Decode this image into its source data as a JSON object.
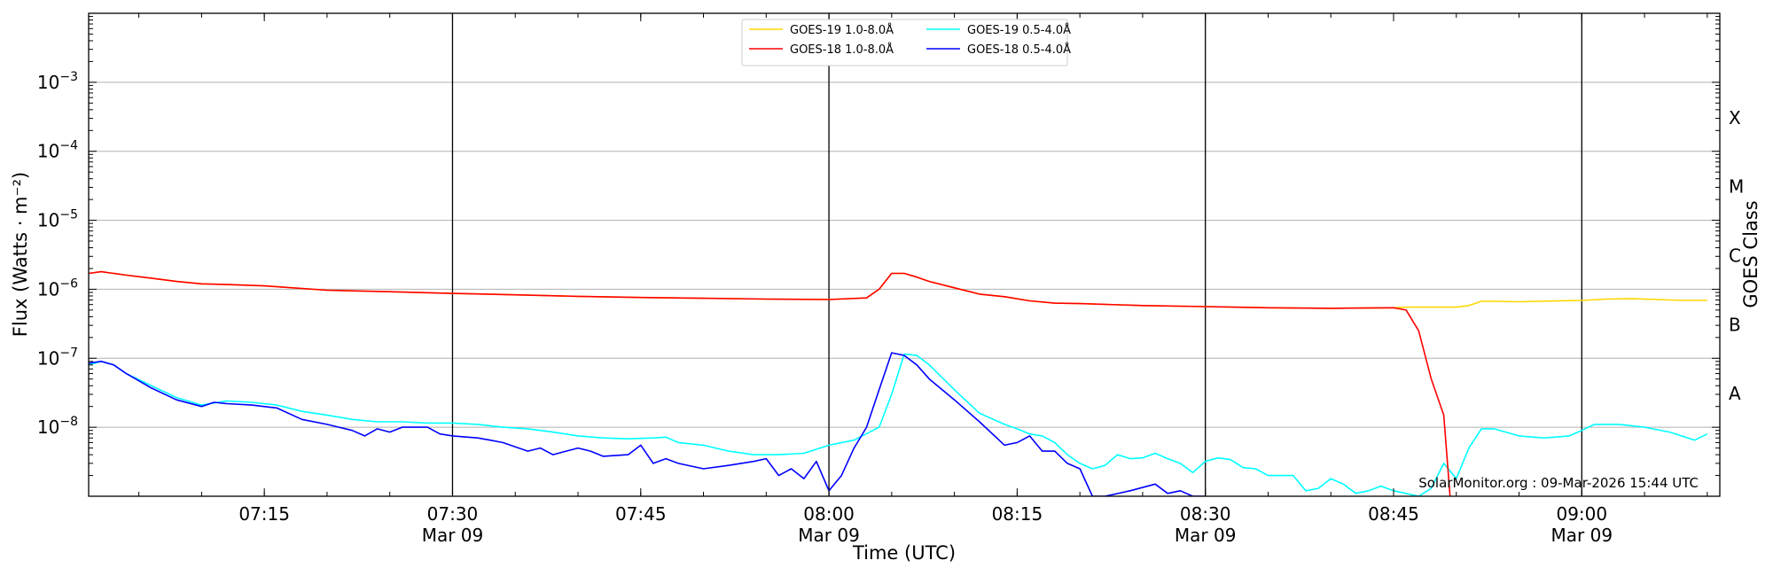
{
  "chart_data": {
    "type": "line",
    "xlabel": "Time (UTC)",
    "ylabel": "Flux (Watts · m⁻²)",
    "right_ylabel": "GOES Class",
    "yscale": "log",
    "ylim": [
      1e-09,
      0.01
    ],
    "xlim": [
      "2026-03-09 07:01",
      "2026-03-09 09:11"
    ],
    "grid": "horizontal at decades",
    "legend_position": "top-center",
    "credit": "SolarMonitor.org : 09-Mar-2026 15:44 UTC",
    "x_ticks": [
      {
        "time": "07:15",
        "date": ""
      },
      {
        "time": "07:30",
        "date": "Mar 09"
      },
      {
        "time": "07:45",
        "date": ""
      },
      {
        "time": "08:00",
        "date": "Mar 09"
      },
      {
        "time": "08:15",
        "date": ""
      },
      {
        "time": "08:30",
        "date": "Mar 09"
      },
      {
        "time": "08:45",
        "date": ""
      },
      {
        "time": "09:00",
        "date": "Mar 09"
      }
    ],
    "y_ticks": [
      {
        "exp": "-8",
        "value": 1e-08
      },
      {
        "exp": "-7",
        "value": 1e-07
      },
      {
        "exp": "-6",
        "value": 1e-06
      },
      {
        "exp": "-5",
        "value": 1e-05
      },
      {
        "exp": "-4",
        "value": 0.0001
      },
      {
        "exp": "-3",
        "value": 0.001
      }
    ],
    "vertical_lines": [
      "07:30",
      "08:00",
      "08:30",
      "09:00"
    ],
    "goes_classes": [
      {
        "label": "A",
        "value": 3.16e-08
      },
      {
        "label": "B",
        "value": 3.16e-07
      },
      {
        "label": "C",
        "value": 3.16e-06
      },
      {
        "label": "M",
        "value": 3.16e-05
      },
      {
        "label": "X",
        "value": 0.000316
      }
    ],
    "series": [
      {
        "name": "GOES-19 1.0-8.0Å",
        "color": "#FFD700",
        "x": [
          "07:01",
          "07:02",
          "07:04",
          "07:06",
          "07:08",
          "07:10",
          "07:12",
          "07:15",
          "07:20",
          "07:25",
          "07:30",
          "07:35",
          "07:40",
          "07:45",
          "07:50",
          "07:55",
          "08:00",
          "08:03",
          "08:04",
          "08:05",
          "08:06",
          "08:07",
          "08:08",
          "08:10",
          "08:12",
          "08:14",
          "08:16",
          "08:18",
          "08:20",
          "08:25",
          "08:30",
          "08:35",
          "08:40",
          "08:45",
          "08:46",
          "08:48",
          "08:50",
          "08:51",
          "08:52",
          "08:53",
          "08:55",
          "09:00",
          "09:02",
          "09:04",
          "09:06",
          "09:08",
          "09:10"
        ],
        "y": [
          1.7e-06,
          1.8e-06,
          1.6e-06,
          1.45e-06,
          1.3e-06,
          1.2e-06,
          1.17e-06,
          1.12e-06,
          9.7e-07,
          9.2e-07,
          8.7e-07,
          8.3e-07,
          7.9e-07,
          7.6e-07,
          7.4e-07,
          7.2e-07,
          7.1e-07,
          7.5e-07,
          1e-06,
          1.7e-06,
          1.7e-06,
          1.5e-06,
          1.3e-06,
          1.05e-06,
          8.5e-07,
          7.8e-07,
          6.8e-07,
          6.3e-07,
          6.2e-07,
          5.8e-07,
          5.6e-07,
          5.4e-07,
          5.3e-07,
          5.4e-07,
          5.5e-07,
          5.5e-07,
          5.5e-07,
          5.8e-07,
          6.7e-07,
          6.7e-07,
          6.6e-07,
          6.9e-07,
          7.2e-07,
          7.3e-07,
          7.1e-07,
          6.9e-07,
          6.9e-07
        ]
      },
      {
        "name": "GOES-18 1.0-8.0Å",
        "color": "#FF0000",
        "x": [
          "07:01",
          "07:02",
          "07:04",
          "07:06",
          "07:08",
          "07:10",
          "07:12",
          "07:15",
          "07:20",
          "07:25",
          "07:30",
          "07:35",
          "07:40",
          "07:45",
          "07:50",
          "07:55",
          "08:00",
          "08:03",
          "08:04",
          "08:05",
          "08:06",
          "08:07",
          "08:08",
          "08:10",
          "08:12",
          "08:14",
          "08:16",
          "08:18",
          "08:20",
          "08:25",
          "08:30",
          "08:35",
          "08:40",
          "08:45",
          "08:46",
          "08:47",
          "08:48",
          "08:49",
          "08:49.5"
        ],
        "y": [
          1.7e-06,
          1.8e-06,
          1.6e-06,
          1.45e-06,
          1.3e-06,
          1.2e-06,
          1.17e-06,
          1.12e-06,
          9.7e-07,
          9.2e-07,
          8.7e-07,
          8.3e-07,
          7.9e-07,
          7.6e-07,
          7.4e-07,
          7.2e-07,
          7.1e-07,
          7.5e-07,
          1e-06,
          1.7e-06,
          1.7e-06,
          1.5e-06,
          1.3e-06,
          1.05e-06,
          8.5e-07,
          7.8e-07,
          6.8e-07,
          6.3e-07,
          6.2e-07,
          5.8e-07,
          5.6e-07,
          5.4e-07,
          5.3e-07,
          5.4e-07,
          5e-07,
          2.5e-07,
          5e-08,
          1.5e-08,
          1e-09
        ]
      },
      {
        "name": "GOES-19 0.5-4.0Å",
        "color": "#00FFFF",
        "x": [
          "07:01",
          "07:02",
          "07:03",
          "07:04",
          "07:06",
          "07:08",
          "07:10",
          "07:12",
          "07:14",
          "07:16",
          "07:18",
          "07:20",
          "07:22",
          "07:24",
          "07:26",
          "07:28",
          "07:30",
          "07:32",
          "07:34",
          "07:36",
          "07:38",
          "07:40",
          "07:42",
          "07:44",
          "07:46",
          "07:47",
          "07:48",
          "07:50",
          "07:52",
          "07:54",
          "07:56",
          "07:58",
          "08:00",
          "08:02",
          "08:04",
          "08:05",
          "08:06",
          "08:07",
          "08:08",
          "08:10",
          "08:12",
          "08:14",
          "08:15",
          "08:16",
          "08:17",
          "08:18",
          "08:19",
          "08:20",
          "08:21",
          "08:22",
          "08:23",
          "08:24",
          "08:25",
          "08:26",
          "08:27",
          "08:28",
          "08:29",
          "08:30",
          "08:31",
          "08:32",
          "08:33",
          "08:34",
          "08:35",
          "08:36",
          "08:37",
          "08:38",
          "08:39",
          "08:40",
          "08:41",
          "08:42",
          "08:43",
          "08:44",
          "08:45",
          "08:46",
          "08:47",
          "08:48",
          "08:49",
          "08:50",
          "08:51",
          "08:52",
          "08:53",
          "08:55",
          "08:57",
          "08:59",
          "09:00",
          "09:01",
          "09:03",
          "09:05",
          "09:07",
          "09:09",
          "09:10"
        ],
        "y": [
          8e-08,
          9e-08,
          8e-08,
          6e-08,
          4e-08,
          2.7e-08,
          2.1e-08,
          2.4e-08,
          2.3e-08,
          2.1e-08,
          1.7e-08,
          1.5e-08,
          1.3e-08,
          1.2e-08,
          1.2e-08,
          1.15e-08,
          1.15e-08,
          1.1e-08,
          1e-08,
          9.5e-09,
          8.5e-09,
          7.5e-09,
          7e-09,
          6.8e-09,
          7e-09,
          7.2e-09,
          6e-09,
          5.5e-09,
          4.5e-09,
          4e-09,
          4e-09,
          4.2e-09,
          5.5e-09,
          6.5e-09,
          1e-08,
          3e-08,
          1.15e-07,
          1.1e-07,
          8e-08,
          3.5e-08,
          1.6e-08,
          1.1e-08,
          9.5e-09,
          8e-09,
          7.5e-09,
          6e-09,
          4e-09,
          3e-09,
          2.5e-09,
          2.8e-09,
          4e-09,
          3.5e-09,
          3.6e-09,
          4.2e-09,
          3.5e-09,
          3e-09,
          2.2e-09,
          3.2e-09,
          3.6e-09,
          3.4e-09,
          2.6e-09,
          2.5e-09,
          2e-09,
          2e-09,
          2e-09,
          1.2e-09,
          1.3e-09,
          1.8e-09,
          1.5e-09,
          1.1e-09,
          1.2e-09,
          1.4e-09,
          1.2e-09,
          1.1e-09,
          1e-09,
          1.3e-09,
          3e-09,
          1.8e-09,
          5e-09,
          9.5e-09,
          9.5e-09,
          7.5e-09,
          7e-09,
          7.5e-09,
          9e-09,
          1.1e-08,
          1.1e-08,
          1e-08,
          8.5e-09,
          6.5e-09,
          8e-09
        ]
      },
      {
        "name": "GOES-18 0.5-4.0Å",
        "color": "#0000FF",
        "x": [
          "07:01",
          "07:02",
          "07:03",
          "07:04",
          "07:06",
          "07:08",
          "07:10",
          "07:11",
          "07:12",
          "07:14",
          "07:16",
          "07:18",
          "07:20",
          "07:22",
          "07:23",
          "07:24",
          "07:25",
          "07:26",
          "07:28",
          "07:29",
          "07:30",
          "07:32",
          "07:33",
          "07:34",
          "07:36",
          "07:37",
          "07:38",
          "07:40",
          "07:41",
          "07:42",
          "07:44",
          "07:45",
          "07:46",
          "07:47",
          "07:48",
          "07:50",
          "07:52",
          "07:54",
          "07:55",
          "07:56",
          "07:57",
          "07:58",
          "07:59",
          "08:00",
          "08:01",
          "08:02",
          "08:03",
          "08:04",
          "08:05",
          "08:06",
          "08:07",
          "08:08",
          "08:10",
          "08:12",
          "08:14",
          "08:15",
          "08:16",
          "08:17",
          "08:18",
          "08:19",
          "08:20",
          "08:21",
          "08:22",
          "08:24",
          "08:26",
          "08:27",
          "08:28",
          "08:29",
          "08:30"
        ],
        "y": [
          8.5e-08,
          9e-08,
          8e-08,
          6e-08,
          3.7e-08,
          2.5e-08,
          2e-08,
          2.3e-08,
          2.2e-08,
          2.1e-08,
          1.9e-08,
          1.3e-08,
          1.1e-08,
          9e-09,
          7.5e-09,
          9.5e-09,
          8.5e-09,
          1e-08,
          1e-08,
          8e-09,
          7.5e-09,
          7e-09,
          6.5e-09,
          6e-09,
          4.5e-09,
          5e-09,
          4e-09,
          5e-09,
          4.5e-09,
          3.8e-09,
          4e-09,
          5.5e-09,
          3e-09,
          3.5e-09,
          3e-09,
          2.5e-09,
          2.8e-09,
          3.2e-09,
          3.5e-09,
          2e-09,
          2.5e-09,
          1.8e-09,
          3.2e-09,
          1.2e-09,
          2e-09,
          5e-09,
          1e-08,
          3.5e-08,
          1.2e-07,
          1.1e-07,
          8e-08,
          5e-08,
          2.5e-08,
          1.2e-08,
          5.5e-09,
          6e-09,
          7.5e-09,
          4.5e-09,
          4.5e-09,
          3e-09,
          2.5e-09,
          1e-09,
          1e-09,
          1.2e-09,
          1.5e-09,
          1.1e-09,
          1.2e-09,
          1e-09,
          1e-09
        ]
      }
    ]
  }
}
